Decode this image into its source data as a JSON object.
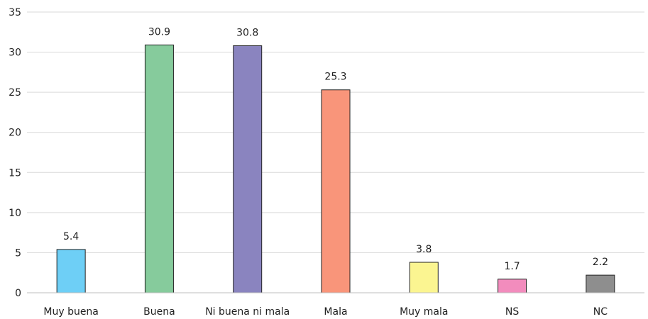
{
  "chart_data": {
    "type": "bar",
    "title": "",
    "xlabel": "",
    "ylabel": "",
    "categories": [
      "Muy buena",
      "Buena",
      "Ni buena ni mala",
      "Mala",
      "Muy mala",
      "NS",
      "NC"
    ],
    "values": [
      5.4,
      30.9,
      30.8,
      25.3,
      3.8,
      1.7,
      2.2
    ],
    "value_labels": [
      "5.4",
      "30.9",
      "30.8",
      "25.3",
      "3.8",
      "1.7",
      "2.2"
    ],
    "colors": [
      "#6ecff6",
      "#86cb9c",
      "#8a84bf",
      "#f9957a",
      "#fbf591",
      "#f28cbd",
      "#8e8e8e"
    ],
    "ylim": [
      0,
      35
    ],
    "yticks": [
      0,
      5,
      10,
      15,
      20,
      25,
      30,
      35
    ],
    "grid": true,
    "legend": "none"
  }
}
